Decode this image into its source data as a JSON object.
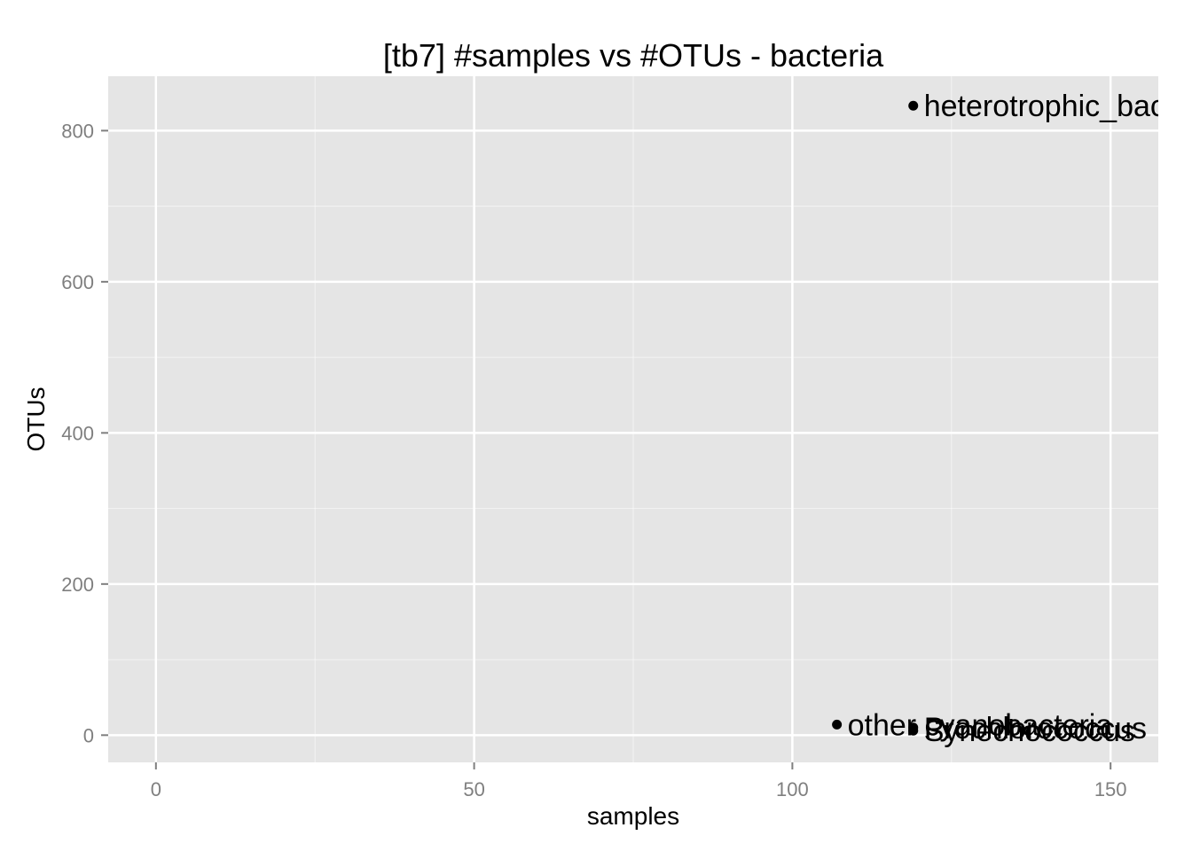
{
  "chart_data": {
    "type": "scatter",
    "title": "[tb7] #samples vs #OTUs - bacteria",
    "xlabel": "samples",
    "ylabel": "OTUs",
    "xlim": [
      -7.5,
      157.5
    ],
    "ylim": [
      -36,
      872
    ],
    "x_ticks": [
      0,
      50,
      100,
      150
    ],
    "x_tick_labels": [
      "0",
      "50",
      "100",
      "150"
    ],
    "y_ticks": [
      0,
      200,
      400,
      600,
      800
    ],
    "y_tick_labels": [
      "0",
      "200",
      "400",
      "600",
      "800"
    ],
    "grid": true,
    "legend": "none",
    "panel_color": "#e5e5e5",
    "grid_color": "#ffffff",
    "point_color": "#000000",
    "points": [
      {
        "label": "heterotrophic_bacteria",
        "x": 119,
        "y": 833
      },
      {
        "label": "other cyanobacteria",
        "x": 107,
        "y": 14
      },
      {
        "label": "Prochlorococcus",
        "x": 119,
        "y": 10
      },
      {
        "label": "Synechococcus",
        "x": 119,
        "y": 6
      }
    ]
  }
}
